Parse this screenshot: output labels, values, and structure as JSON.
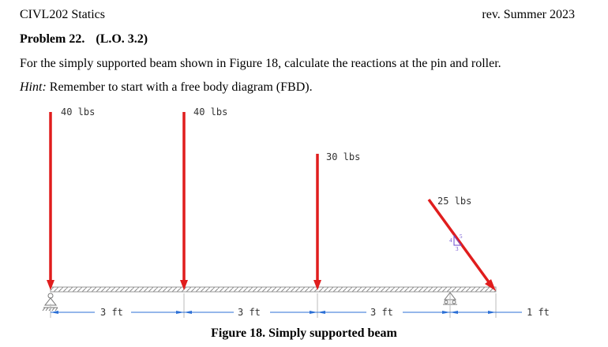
{
  "header": {
    "course": "CIVL202 Statics",
    "revision": "rev. Summer 2023"
  },
  "problem": {
    "number_label": "Problem 22.",
    "lo_label": "(L.O. 3.2)",
    "statement": "For the simply supported beam shown in Figure 18, calculate the reactions at the pin and roller.",
    "hint_label": "Hint:",
    "hint_text": "Remember to start with a free body diagram (FBD)."
  },
  "figure": {
    "caption": "Figure 18. Simply supported beam",
    "loads": [
      {
        "label": "40 lbs"
      },
      {
        "label": "40 lbs"
      },
      {
        "label": "30 lbs"
      },
      {
        "label": "25 lbs"
      }
    ],
    "slope": {
      "rise": "4",
      "run": "3",
      "hyp": "5"
    },
    "dimensions": [
      {
        "label": "3 ft"
      },
      {
        "label": "3 ft"
      },
      {
        "label": "3 ft"
      },
      {
        "label": "1 ft"
      }
    ],
    "colors": {
      "load": "#e01d1d",
      "dimension": "#2b6fd6",
      "beam": "#b0b0b0",
      "slope": "#6a4bd0"
    }
  }
}
